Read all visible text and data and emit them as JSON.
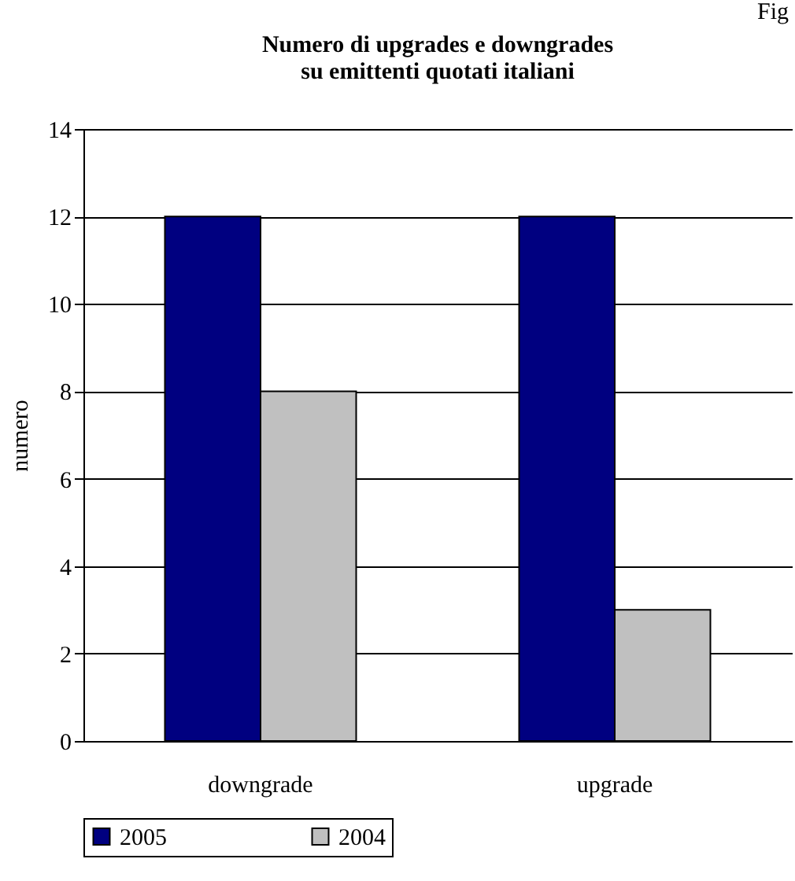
{
  "chart_data": {
    "type": "bar",
    "title": "Numero di upgrades e downgrades",
    "subtitle": "su emittenti quotati italiani",
    "ylabel": "numero",
    "annotations": [
      "Fig"
    ],
    "categories": [
      "downgrade",
      "upgrade"
    ],
    "series": [
      {
        "name": "2005",
        "color": "#000080",
        "values": [
          12,
          12
        ]
      },
      {
        "name": "2004",
        "color": "#c0c0c0",
        "values": [
          8,
          3
        ]
      }
    ],
    "ylim": [
      0,
      14
    ],
    "yticks": [
      0,
      2,
      4,
      6,
      8,
      10,
      12,
      14
    ],
    "grid": "y",
    "legend": "bottom"
  }
}
